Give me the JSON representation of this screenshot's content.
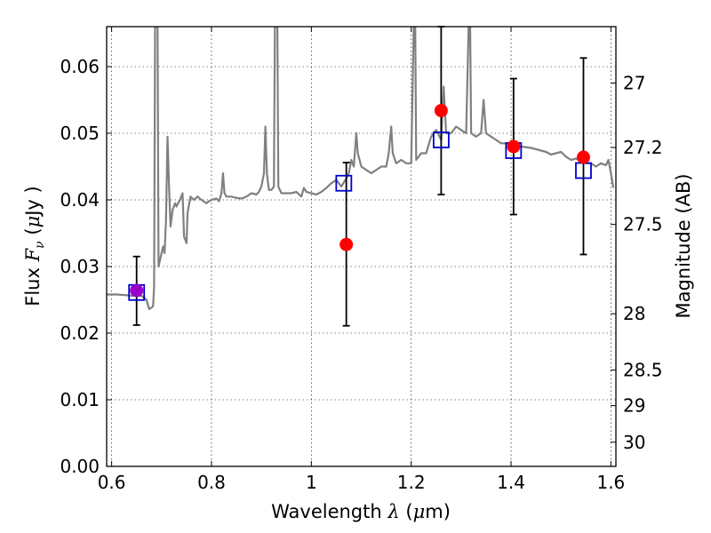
{
  "chart_data": {
    "type": "scatter",
    "xlabel": {
      "main": "Wavelength",
      "symbol": "λ",
      "unit_open": "(",
      "unit_mu": "μ",
      "unit_rest": "m)"
    },
    "ylabel": {
      "main": "Flux",
      "symbol": "F",
      "sub": "ν",
      "unit_open": "(",
      "unit_mu": "μ",
      "unit_rest": "Jy )"
    },
    "ylabel_right": "Magnitude (AB)",
    "xlim": [
      0.59,
      1.61
    ],
    "ylim": [
      0.0,
      0.066
    ],
    "x_ticks": [
      0.6,
      0.8,
      1.0,
      1.2,
      1.4,
      1.6
    ],
    "x_tick_labels": [
      "0.6",
      "0.8",
      "1",
      "1.2",
      "1.4",
      "1.6"
    ],
    "y_ticks": [
      0.0,
      0.01,
      0.02,
      0.03,
      0.04,
      0.05,
      0.06
    ],
    "y_tick_labels": [
      "0.00",
      "0.01",
      "0.02",
      "0.03",
      "0.04",
      "0.05",
      "0.06"
    ],
    "mag_ticks": [
      27,
      27.2,
      27.5,
      28,
      28.5,
      29,
      30
    ],
    "mag_tick_labels": [
      "27",
      "27.2",
      "27.5",
      "28",
      "28.5",
      "29",
      "30"
    ],
    "grid": true,
    "colors": {
      "model": "#808080",
      "observed": "#ff0000",
      "synthetic": "#0000cc",
      "errorbar": "#000000",
      "overlap": "#9900cc"
    },
    "observed": [
      {
        "x": 0.65,
        "y": 0.0264,
        "yerr_low": 0.0212,
        "yerr_high": 0.0315
      },
      {
        "x": 1.07,
        "y": 0.0333,
        "yerr_low": 0.0211,
        "yerr_high": 0.0456
      },
      {
        "x": 1.26,
        "y": 0.0534,
        "yerr_low": 0.0408,
        "yerr_high": 0.066
      },
      {
        "x": 1.405,
        "y": 0.048,
        "yerr_low": 0.0378,
        "yerr_high": 0.0582
      },
      {
        "x": 1.545,
        "y": 0.0464,
        "yerr_low": 0.0318,
        "yerr_high": 0.0613
      }
    ],
    "synthetic": [
      {
        "x": 0.65,
        "y": 0.0261
      },
      {
        "x": 1.065,
        "y": 0.0425
      },
      {
        "x": 1.26,
        "y": 0.049
      },
      {
        "x": 1.405,
        "y": 0.0474
      },
      {
        "x": 1.545,
        "y": 0.0444
      }
    ],
    "model_spectrum": [
      [
        0.59,
        0.0258
      ],
      [
        0.61,
        0.0258
      ],
      [
        0.63,
        0.0257
      ],
      [
        0.64,
        0.0256
      ],
      [
        0.66,
        0.0256
      ],
      [
        0.67,
        0.025
      ],
      [
        0.675,
        0.0236
      ],
      [
        0.683,
        0.024
      ],
      [
        0.685,
        0.027
      ],
      [
        0.687,
        0.066
      ],
      [
        0.692,
        0.066
      ],
      [
        0.694,
        0.03
      ],
      [
        0.7,
        0.032
      ],
      [
        0.703,
        0.033
      ],
      [
        0.706,
        0.032
      ],
      [
        0.709,
        0.037
      ],
      [
        0.712,
        0.0495
      ],
      [
        0.715,
        0.042
      ],
      [
        0.718,
        0.036
      ],
      [
        0.722,
        0.0385
      ],
      [
        0.727,
        0.0395
      ],
      [
        0.73,
        0.039
      ],
      [
        0.733,
        0.0395
      ],
      [
        0.737,
        0.04
      ],
      [
        0.742,
        0.041
      ],
      [
        0.745,
        0.0345
      ],
      [
        0.75,
        0.0335
      ],
      [
        0.752,
        0.038
      ],
      [
        0.758,
        0.0405
      ],
      [
        0.765,
        0.04
      ],
      [
        0.772,
        0.0405
      ],
      [
        0.78,
        0.04
      ],
      [
        0.79,
        0.0395
      ],
      [
        0.795,
        0.0398
      ],
      [
        0.8,
        0.04
      ],
      [
        0.81,
        0.0402
      ],
      [
        0.815,
        0.0398
      ],
      [
        0.82,
        0.041
      ],
      [
        0.823,
        0.044
      ],
      [
        0.826,
        0.041
      ],
      [
        0.83,
        0.0405
      ],
      [
        0.84,
        0.0405
      ],
      [
        0.85,
        0.0403
      ],
      [
        0.86,
        0.0402
      ],
      [
        0.87,
        0.0405
      ],
      [
        0.88,
        0.041
      ],
      [
        0.89,
        0.0408
      ],
      [
        0.895,
        0.0412
      ],
      [
        0.9,
        0.042
      ],
      [
        0.905,
        0.044
      ],
      [
        0.908,
        0.051
      ],
      [
        0.911,
        0.044
      ],
      [
        0.915,
        0.0415
      ],
      [
        0.92,
        0.0415
      ],
      [
        0.925,
        0.042
      ],
      [
        0.927,
        0.066
      ],
      [
        0.932,
        0.066
      ],
      [
        0.934,
        0.042
      ],
      [
        0.94,
        0.041
      ],
      [
        0.95,
        0.041
      ],
      [
        0.96,
        0.041
      ],
      [
        0.97,
        0.0412
      ],
      [
        0.98,
        0.0405
      ],
      [
        0.985,
        0.0418
      ],
      [
        0.99,
        0.0412
      ],
      [
        1.0,
        0.041
      ],
      [
        1.01,
        0.0408
      ],
      [
        1.02,
        0.0412
      ],
      [
        1.03,
        0.0418
      ],
      [
        1.04,
        0.0425
      ],
      [
        1.05,
        0.043
      ],
      [
        1.06,
        0.042
      ],
      [
        1.07,
        0.0432
      ],
      [
        1.075,
        0.044
      ],
      [
        1.08,
        0.046
      ],
      [
        1.085,
        0.045
      ],
      [
        1.09,
        0.05
      ],
      [
        1.093,
        0.047
      ],
      [
        1.1,
        0.045
      ],
      [
        1.11,
        0.0445
      ],
      [
        1.12,
        0.044
      ],
      [
        1.13,
        0.0445
      ],
      [
        1.14,
        0.045
      ],
      [
        1.15,
        0.045
      ],
      [
        1.155,
        0.047
      ],
      [
        1.16,
        0.051
      ],
      [
        1.163,
        0.047
      ],
      [
        1.17,
        0.0455
      ],
      [
        1.18,
        0.046
      ],
      [
        1.19,
        0.0455
      ],
      [
        1.2,
        0.0455
      ],
      [
        1.205,
        0.066
      ],
      [
        1.208,
        0.066
      ],
      [
        1.21,
        0.046
      ],
      [
        1.22,
        0.047
      ],
      [
        1.23,
        0.047
      ],
      [
        1.24,
        0.0495
      ],
      [
        1.25,
        0.0505
      ],
      [
        1.26,
        0.049
      ],
      [
        1.265,
        0.057
      ],
      [
        1.27,
        0.05
      ],
      [
        1.28,
        0.05
      ],
      [
        1.29,
        0.051
      ],
      [
        1.3,
        0.0505
      ],
      [
        1.31,
        0.05
      ],
      [
        1.315,
        0.066
      ],
      [
        1.318,
        0.066
      ],
      [
        1.32,
        0.05
      ],
      [
        1.33,
        0.0495
      ],
      [
        1.34,
        0.05
      ],
      [
        1.345,
        0.055
      ],
      [
        1.35,
        0.05
      ],
      [
        1.36,
        0.0495
      ],
      [
        1.37,
        0.049
      ],
      [
        1.38,
        0.0485
      ],
      [
        1.39,
        0.0485
      ],
      [
        1.4,
        0.0483
      ],
      [
        1.42,
        0.048
      ],
      [
        1.44,
        0.0478
      ],
      [
        1.45,
        0.0476
      ],
      [
        1.46,
        0.0474
      ],
      [
        1.47,
        0.0472
      ],
      [
        1.48,
        0.0468
      ],
      [
        1.49,
        0.047
      ],
      [
        1.5,
        0.0472
      ],
      [
        1.51,
        0.0465
      ],
      [
        1.52,
        0.046
      ],
      [
        1.53,
        0.0462
      ],
      [
        1.54,
        0.0458
      ],
      [
        1.55,
        0.0455
      ],
      [
        1.56,
        0.0455
      ],
      [
        1.57,
        0.045
      ],
      [
        1.58,
        0.0455
      ],
      [
        1.59,
        0.0452
      ],
      [
        1.595,
        0.046
      ],
      [
        1.6,
        0.044
      ],
      [
        1.605,
        0.0418
      ]
    ]
  }
}
